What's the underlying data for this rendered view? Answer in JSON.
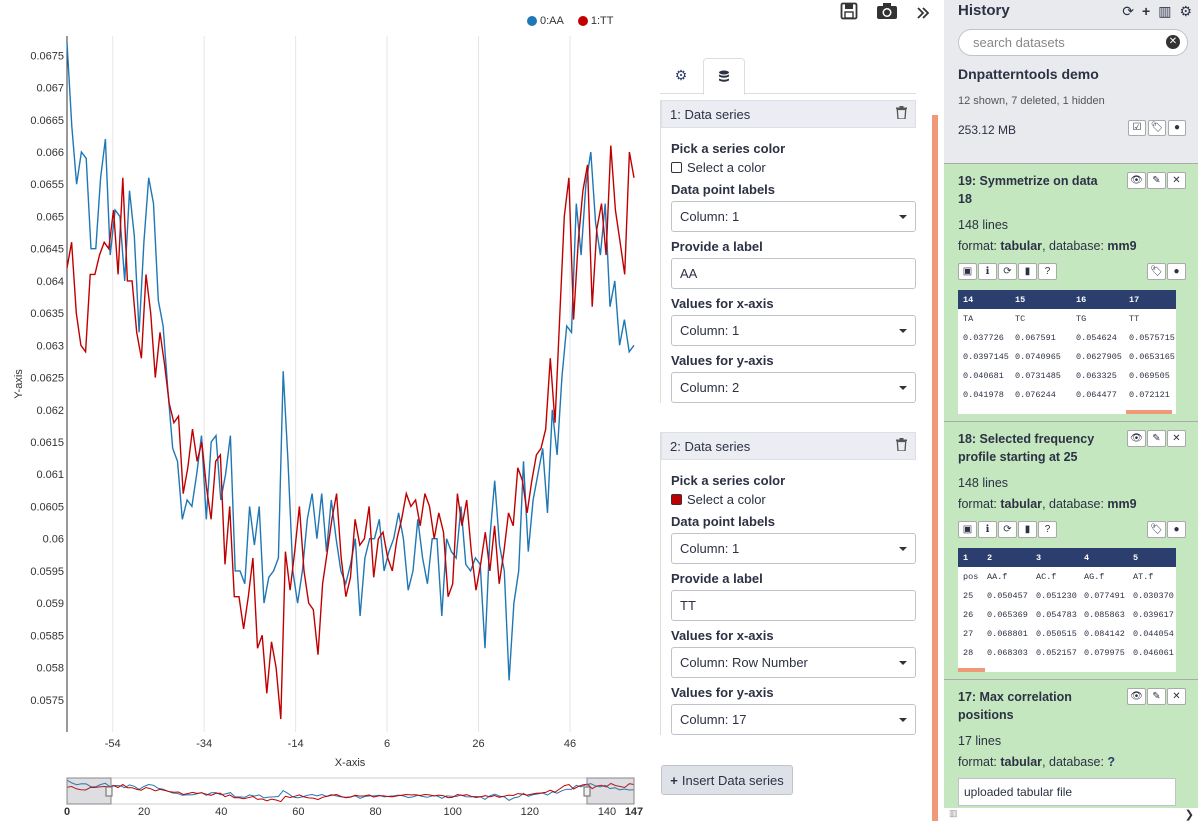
{
  "chart_data": {
    "type": "line",
    "xlabel": "X-axis",
    "ylabel": "Y-axis",
    "xlim": [
      -64,
      60
    ],
    "ylim": [
      0.057,
      0.0678
    ],
    "xticks": [
      "-54",
      "-34",
      "-14",
      "6",
      "26",
      "46"
    ],
    "yticks": [
      "0.0575",
      "0.058",
      "0.0585",
      "0.059",
      "0.0595",
      "0.06",
      "0.0605",
      "0.061",
      "0.0615",
      "0.062",
      "0.0625",
      "0.063",
      "0.0635",
      "0.064",
      "0.0645",
      "0.065",
      "0.0655",
      "0.066",
      "0.0665",
      "0.067",
      "0.0675"
    ],
    "series": [
      {
        "name": "0:AA",
        "color": "#1f77b4",
        "values": [
          0.0677,
          0.0664,
          0.0655,
          0.066,
          0.0659,
          0.0645,
          0.0645,
          0.0656,
          0.0662,
          0.0644,
          0.0651,
          0.065,
          0.064,
          0.0654,
          0.0647,
          0.0632,
          0.0646,
          0.0656,
          0.0652,
          0.0637,
          0.0633,
          0.0623,
          0.0614,
          0.0612,
          0.0603,
          0.0606,
          0.0605,
          0.061,
          0.0616,
          0.0603,
          0.0615,
          0.0616,
          0.0606,
          0.061,
          0.0616,
          0.0595,
          0.0595,
          0.0593,
          0.0605,
          0.0599,
          0.0605,
          0.059,
          0.0594,
          0.0595,
          0.0597,
          0.0626,
          0.0612,
          0.0595,
          0.059,
          0.0595,
          0.0603,
          0.0607,
          0.06,
          0.0607,
          0.0598,
          0.0606,
          0.06,
          0.0595,
          0.0593,
          0.0596,
          0.06,
          0.0588,
          0.0597,
          0.06,
          0.06,
          0.0603,
          0.0595,
          0.0598,
          0.06,
          0.0604,
          0.06,
          0.0592,
          0.0595,
          0.0603,
          0.0597,
          0.0593,
          0.06,
          0.06,
          0.0588,
          0.06,
          0.0598,
          0.0597,
          0.0605,
          0.0596,
          0.0595,
          0.0597,
          0.0596,
          0.0583,
          0.06,
          0.0609,
          0.0599,
          0.0595,
          0.0578,
          0.059,
          0.0595,
          0.0612,
          0.0598,
          0.0606,
          0.061,
          0.0614,
          0.0604,
          0.062,
          0.0613,
          0.0625,
          0.0633,
          0.0632,
          0.0652,
          0.0644,
          0.0655,
          0.066,
          0.0649,
          0.0644,
          0.0652,
          0.0636,
          0.064,
          0.063,
          0.0634,
          0.0629,
          0.063
        ]
      },
      {
        "name": "1:TT",
        "color": "#c00000",
        "values": [
          0.0642,
          0.0646,
          0.0635,
          0.063,
          0.0629,
          0.0641,
          0.0641,
          0.0644,
          0.0646,
          0.0645,
          0.0651,
          0.0641,
          0.0656,
          0.064,
          0.064,
          0.0632,
          0.0628,
          0.0641,
          0.0635,
          0.0625,
          0.0632,
          0.0627,
          0.0621,
          0.0618,
          0.0619,
          0.0607,
          0.0611,
          0.0617,
          0.0612,
          0.0615,
          0.0608,
          0.0603,
          0.0612,
          0.0613,
          0.0596,
          0.0605,
          0.0591,
          0.0591,
          0.0586,
          0.0591,
          0.0597,
          0.0583,
          0.0585,
          0.0576,
          0.0584,
          0.058,
          0.0572,
          0.0598,
          0.0592,
          0.0598,
          0.0605,
          0.0595,
          0.059,
          0.0589,
          0.0582,
          0.0593,
          0.0598,
          0.0603,
          0.0607,
          0.0597,
          0.0591,
          0.0594,
          0.0603,
          0.0599,
          0.06,
          0.0605,
          0.0594,
          0.06,
          0.0601,
          0.0597,
          0.0595,
          0.06,
          0.0603,
          0.0607,
          0.0605,
          0.0606,
          0.0602,
          0.0607,
          0.0605,
          0.06,
          0.0604,
          0.0601,
          0.0591,
          0.0593,
          0.0607,
          0.0602,
          0.0606,
          0.0598,
          0.0592,
          0.0596,
          0.0601,
          0.0595,
          0.0602,
          0.0593,
          0.0598,
          0.0604,
          0.0602,
          0.0611,
          0.0609,
          0.0604,
          0.0609,
          0.0613,
          0.0614,
          0.0617,
          0.0628,
          0.0618,
          0.0634,
          0.065,
          0.0656,
          0.0634,
          0.0646,
          0.0654,
          0.0658,
          0.0636,
          0.0648,
          0.0652,
          0.0644,
          0.0661,
          0.0651,
          0.0646,
          0.0641,
          0.066,
          0.0656
        ]
      }
    ],
    "navigator": {
      "ticks": [
        "0",
        "20",
        "40",
        "60",
        "80",
        "100",
        "120",
        "140",
        "147"
      ]
    }
  },
  "topbar": {
    "save_icon": "floppy-icon",
    "camera_icon": "camera-icon",
    "expand_icon": "chevron-double-right-icon"
  },
  "editor": {
    "tabs": [
      {
        "icon": "gear-icon"
      },
      {
        "icon": "database-icon"
      }
    ],
    "series": [
      {
        "header": "1: Data series",
        "color_label": "Pick a series color",
        "color_check": "Select a color",
        "color": "#ffffff",
        "point_labels_label": "Data point labels",
        "point_labels_value": "Column: 1",
        "label_label": "Provide a label",
        "label_value": "AA",
        "x_label": "Values for x-axis",
        "x_value": "Column: 1",
        "y_label": "Values for y-axis",
        "y_value": "Column: 2"
      },
      {
        "header": "2: Data series",
        "color_label": "Pick a series color",
        "color_check": "Select a color",
        "color": "#c00000",
        "point_labels_label": "Data point labels",
        "point_labels_value": "Column: 1",
        "label_label": "Provide a label",
        "label_value": "TT",
        "x_label": "Values for x-axis",
        "x_value": "Column: Row Number",
        "y_label": "Values for y-axis",
        "y_value": "Column: 17"
      }
    ],
    "insert_label": "Insert Data series"
  },
  "history": {
    "title": "History",
    "search_placeholder": "search datasets",
    "name": "Dnpatterntools demo",
    "counts": "12 shown, 7 deleted, 1 hidden",
    "size": "253.12 MB",
    "datasets": [
      {
        "title": "19: Symmetrize on data 18",
        "lines": "148 lines",
        "format_prefix": "format: ",
        "format": "tabular",
        "db_prefix": ", database: ",
        "db": "mm9",
        "peek_header": [
          "14",
          "15",
          "16",
          "17"
        ],
        "peek_rows": [
          [
            "TA",
            "TC",
            "TG",
            "TT"
          ],
          [
            "0.037726",
            "0.067591",
            "0.054624",
            "0.0575715"
          ],
          [
            "0.0397145",
            "0.0740965",
            "0.0627905",
            "0.0653165"
          ],
          [
            "0.040681",
            "0.0731485",
            "0.063325",
            "0.069505"
          ],
          [
            "0.041978",
            "0.076244",
            "0.064477",
            "0.072121"
          ]
        ]
      },
      {
        "title": "18: Selected frequency profile starting at 25",
        "lines": "148 lines",
        "format_prefix": "format: ",
        "format": "tabular",
        "db_prefix": ", database: ",
        "db": "mm9",
        "peek_header": [
          "1",
          "2",
          "3",
          "4",
          "5"
        ],
        "peek_rows": [
          [
            "pos",
            "AA.f",
            "AC.f",
            "AG.f",
            "AT.f"
          ],
          [
            "25",
            "0.050457",
            "0.051230",
            "0.077491",
            "0.030370"
          ],
          [
            "26",
            "0.065369",
            "0.054783",
            "0.085863",
            "0.039617"
          ],
          [
            "27",
            "0.068801",
            "0.050515",
            "0.084142",
            "0.044054"
          ],
          [
            "28",
            "0.068303",
            "0.052157",
            "0.079975",
            "0.046061"
          ]
        ]
      },
      {
        "title": "17: Max correlation positions",
        "lines": "17 lines",
        "format_prefix": "format: ",
        "format": "tabular",
        "db_prefix": ", database: ",
        "db": "?",
        "info": "uploaded tabular file"
      }
    ]
  }
}
